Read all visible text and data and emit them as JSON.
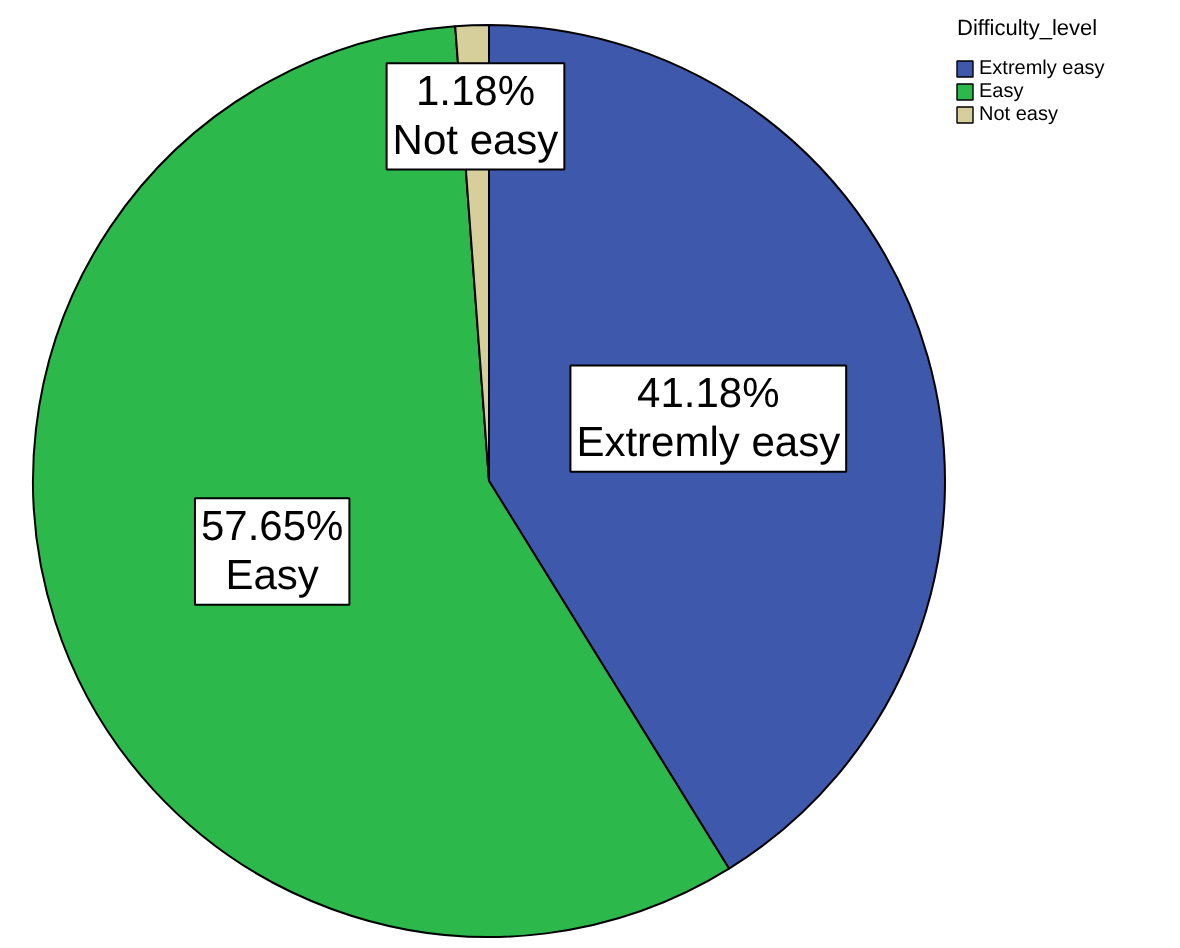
{
  "chart_data": {
    "type": "pie",
    "legend_title": "Difficulty_level",
    "legend": "top right",
    "categories": [
      "Extremly easy",
      "Easy",
      "Not easy"
    ],
    "values": [
      41.18,
      57.65,
      1.18
    ],
    "colors": [
      "#3e58ac",
      "#2db84b",
      "#d6cf9c"
    ],
    "value_labels": [
      "41.18%",
      "57.65%",
      "1.18%"
    ]
  }
}
